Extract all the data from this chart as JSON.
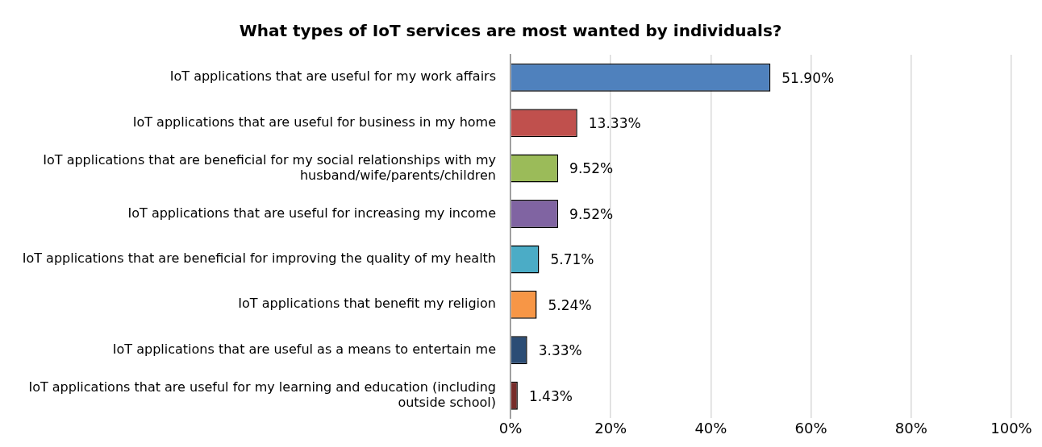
{
  "chart_data": {
    "type": "bar",
    "orientation": "horizontal",
    "title": "What types of IoT services are most wanted by individuals?",
    "categories": [
      "IoT applications that are useful for my work affairs",
      "IoT applications that are useful for business in my home",
      "IoT applications that are beneficial for my social relationships with my husband/wife/parents/children",
      "IoT applications that are useful for increasing my income",
      "IoT applications that are beneficial for improving the quality of my health",
      "IoT applications that benefit my religion",
      "IoT applications that are useful as a means to entertain me",
      "IoT applications that are useful for my learning and education (including outside school)"
    ],
    "values": [
      51.9,
      13.33,
      9.52,
      9.52,
      5.71,
      5.24,
      3.33,
      1.43
    ],
    "value_labels": [
      "51.90%",
      "13.33%",
      "9.52%",
      "9.52%",
      "5.71%",
      "5.24%",
      "3.33%",
      "1.43%"
    ],
    "colors": [
      "#4f81bd",
      "#c0504d",
      "#9bbb59",
      "#8064a2",
      "#4bacc6",
      "#f79646",
      "#2c4d75",
      "#772c2a"
    ],
    "xlim": [
      0,
      100
    ],
    "xticks": [
      {
        "value": 0,
        "label": "0%"
      },
      {
        "value": 20,
        "label": "20%"
      },
      {
        "value": 40,
        "label": "40%"
      },
      {
        "value": 60,
        "label": "60%"
      },
      {
        "value": 80,
        "label": "80%"
      },
      {
        "value": 100,
        "label": "100%"
      }
    ],
    "grid": "x",
    "legend": false
  }
}
